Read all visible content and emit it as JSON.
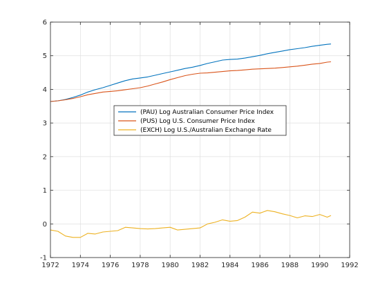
{
  "chart_data": {
    "type": "line",
    "title": "",
    "xlabel": "",
    "ylabel": "",
    "xlim": [
      1972,
      1992
    ],
    "ylim": [
      -1,
      6
    ],
    "xticks": [
      "1972",
      "1974",
      "1976",
      "1978",
      "1980",
      "1982",
      "1984",
      "1986",
      "1988",
      "1990",
      "1992"
    ],
    "yticks": [
      "-1",
      "0",
      "1",
      "2",
      "3",
      "4",
      "5",
      "6"
    ],
    "grid": true,
    "legend_position": "center",
    "series": [
      {
        "name": "(PAU) Log Australian Consumer Price Index",
        "color": "#0072BD",
        "x": [
          1972.0,
          1972.5,
          1973.0,
          1973.5,
          1974.0,
          1974.5,
          1975.0,
          1975.5,
          1976.0,
          1976.5,
          1977.0,
          1977.5,
          1978.0,
          1978.5,
          1979.0,
          1979.5,
          1980.0,
          1980.5,
          1981.0,
          1981.5,
          1982.0,
          1982.5,
          1983.0,
          1983.5,
          1984.0,
          1984.5,
          1985.0,
          1985.5,
          1986.0,
          1986.5,
          1987.0,
          1987.5,
          1988.0,
          1988.5,
          1989.0,
          1989.5,
          1990.0,
          1990.5,
          1990.75
        ],
        "values": [
          3.64,
          3.66,
          3.7,
          3.76,
          3.83,
          3.92,
          3.99,
          4.05,
          4.12,
          4.19,
          4.26,
          4.31,
          4.34,
          4.37,
          4.42,
          4.47,
          4.52,
          4.57,
          4.62,
          4.66,
          4.71,
          4.77,
          4.82,
          4.87,
          4.89,
          4.9,
          4.93,
          4.97,
          5.01,
          5.06,
          5.1,
          5.14,
          5.18,
          5.21,
          5.24,
          5.28,
          5.31,
          5.34,
          5.35
        ]
      },
      {
        "name": "(PUS) Log U.S. Consumer Price Index",
        "color": "#D95319",
        "x": [
          1972.0,
          1972.5,
          1973.0,
          1973.5,
          1974.0,
          1974.5,
          1975.0,
          1975.5,
          1976.0,
          1976.5,
          1977.0,
          1977.5,
          1978.0,
          1978.5,
          1979.0,
          1979.5,
          1980.0,
          1980.5,
          1981.0,
          1981.5,
          1982.0,
          1982.5,
          1983.0,
          1983.5,
          1984.0,
          1984.5,
          1985.0,
          1985.5,
          1986.0,
          1986.5,
          1987.0,
          1987.5,
          1988.0,
          1988.5,
          1989.0,
          1989.5,
          1990.0,
          1990.5,
          1990.75
        ],
        "values": [
          3.64,
          3.66,
          3.69,
          3.73,
          3.78,
          3.84,
          3.88,
          3.92,
          3.94,
          3.96,
          3.99,
          4.02,
          4.05,
          4.1,
          4.16,
          4.22,
          4.29,
          4.35,
          4.41,
          4.45,
          4.48,
          4.49,
          4.51,
          4.53,
          4.55,
          4.56,
          4.58,
          4.6,
          4.61,
          4.62,
          4.63,
          4.65,
          4.67,
          4.69,
          4.72,
          4.75,
          4.77,
          4.81,
          4.82
        ]
      },
      {
        "name": "(EXCH) Log U.S./Australian Exchange Rate",
        "color": "#EDB120",
        "x": [
          1972.0,
          1972.5,
          1973.0,
          1973.5,
          1974.0,
          1974.5,
          1975.0,
          1975.5,
          1976.0,
          1976.5,
          1977.0,
          1977.5,
          1978.0,
          1978.5,
          1979.0,
          1979.5,
          1980.0,
          1980.5,
          1981.0,
          1981.5,
          1982.0,
          1982.5,
          1983.0,
          1983.5,
          1984.0,
          1984.5,
          1985.0,
          1985.5,
          1986.0,
          1986.5,
          1987.0,
          1987.5,
          1988.0,
          1988.5,
          1989.0,
          1989.5,
          1990.0,
          1990.5,
          1990.75
        ],
        "values": [
          -0.18,
          -0.22,
          -0.36,
          -0.4,
          -0.4,
          -0.28,
          -0.3,
          -0.24,
          -0.22,
          -0.2,
          -0.1,
          -0.12,
          -0.14,
          -0.15,
          -0.14,
          -0.12,
          -0.1,
          -0.18,
          -0.16,
          -0.14,
          -0.12,
          0.0,
          0.05,
          0.12,
          0.08,
          0.1,
          0.2,
          0.35,
          0.32,
          0.4,
          0.36,
          0.3,
          0.25,
          0.18,
          0.24,
          0.22,
          0.28,
          0.2,
          0.25
        ]
      }
    ]
  }
}
